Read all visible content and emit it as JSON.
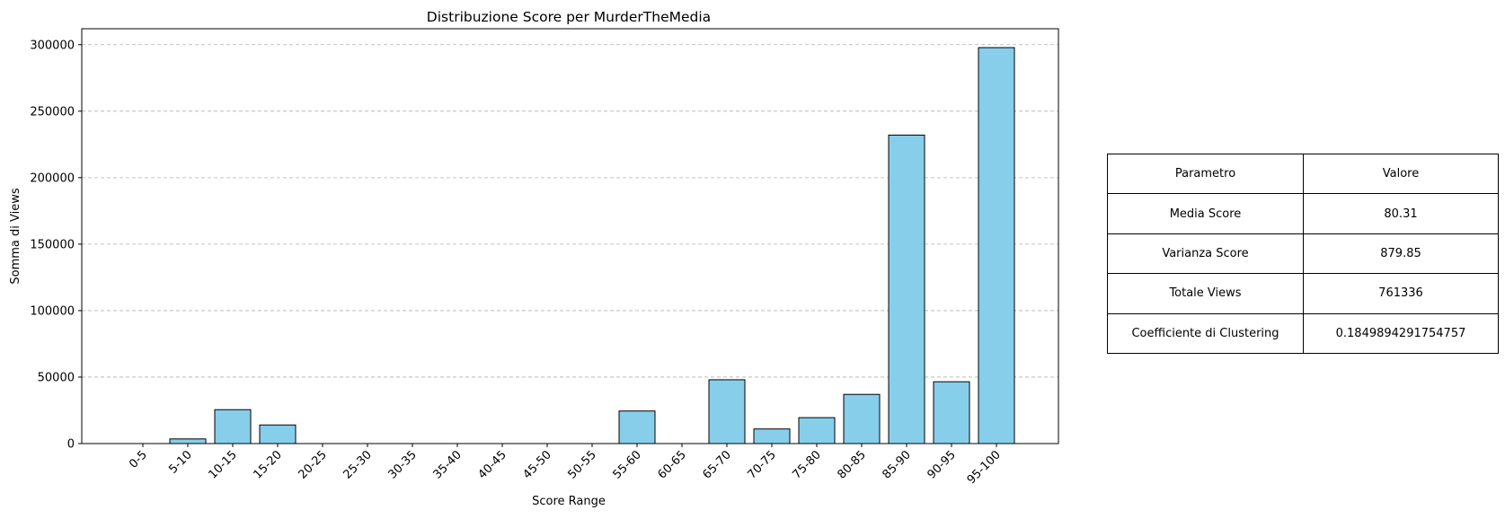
{
  "chart_data": {
    "type": "bar",
    "title": "Distribuzione Score per MurderTheMedia",
    "xlabel": "Score Range",
    "ylabel": "Somma di Views",
    "categories": [
      "0-5",
      "5-10",
      "10-15",
      "15-20",
      "20-25",
      "25-30",
      "30-35",
      "35-40",
      "40-45",
      "45-50",
      "50-55",
      "55-60",
      "60-65",
      "65-70",
      "70-75",
      "75-80",
      "80-85",
      "85-90",
      "90-95",
      "95-100"
    ],
    "values": [
      0,
      3500,
      25500,
      14000,
      0,
      0,
      0,
      0,
      0,
      0,
      0,
      24500,
      0,
      48000,
      11000,
      19500,
      37000,
      232000,
      46500,
      297800
    ],
    "ylim": [
      0,
      312000
    ],
    "yticks": [
      0,
      50000,
      100000,
      150000,
      200000,
      250000,
      300000
    ],
    "grid": "y",
    "bar_color": "#87CEEB",
    "edge_color": "#000000"
  },
  "table": {
    "header": {
      "param": "Parametro",
      "value": "Valore"
    },
    "rows": [
      {
        "param": "Media Score",
        "value": "80.31"
      },
      {
        "param": "Varianza Score",
        "value": "879.85"
      },
      {
        "param": "Totale Views",
        "value": "761336"
      },
      {
        "param": "Coefficiente di Clustering",
        "value": "0.1849894291754757"
      }
    ]
  }
}
